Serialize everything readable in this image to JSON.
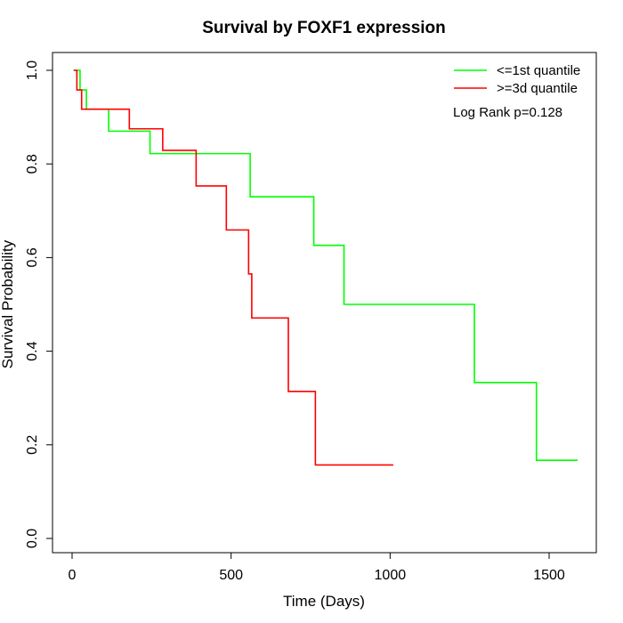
{
  "chart_data": {
    "type": "line",
    "title": "Survival by FOXF1 expression",
    "xlabel": "Time (Days)",
    "ylabel": "Survival Probability",
    "xlim": [
      0,
      1650
    ],
    "ylim": [
      -0.04,
      1.04
    ],
    "xticks": [
      0,
      500,
      1000,
      1500
    ],
    "xtick_labels": [
      "0",
      "500",
      "1000",
      "1500"
    ],
    "yticks": [
      0.0,
      0.2,
      0.4,
      0.6,
      0.8,
      1.0
    ],
    "ytick_labels": [
      "0.0",
      "0.2",
      "0.4",
      "0.6",
      "0.8",
      "1.0"
    ],
    "grid": false,
    "legend_position": "top-right",
    "annotation": "Log Rank p=0.128",
    "series": [
      {
        "name": "<=1st quantile",
        "color": "#00ff00",
        "step": true,
        "x": [
          5,
          25,
          45,
          115,
          245,
          560,
          760,
          855,
          1265,
          1460,
          1590
        ],
        "y": [
          1.0,
          0.958,
          0.917,
          0.87,
          0.822,
          0.73,
          0.626,
          0.5,
          0.333,
          0.167,
          0.167
        ]
      },
      {
        "name": ">=3d quantile",
        "color": "#ff0000",
        "step": true,
        "x": [
          5,
          15,
          30,
          180,
          285,
          390,
          485,
          555,
          565,
          680,
          765,
          1010
        ],
        "y": [
          1.0,
          0.958,
          0.917,
          0.875,
          0.829,
          0.753,
          0.659,
          0.565,
          0.471,
          0.314,
          0.157,
          0.157
        ]
      }
    ]
  }
}
